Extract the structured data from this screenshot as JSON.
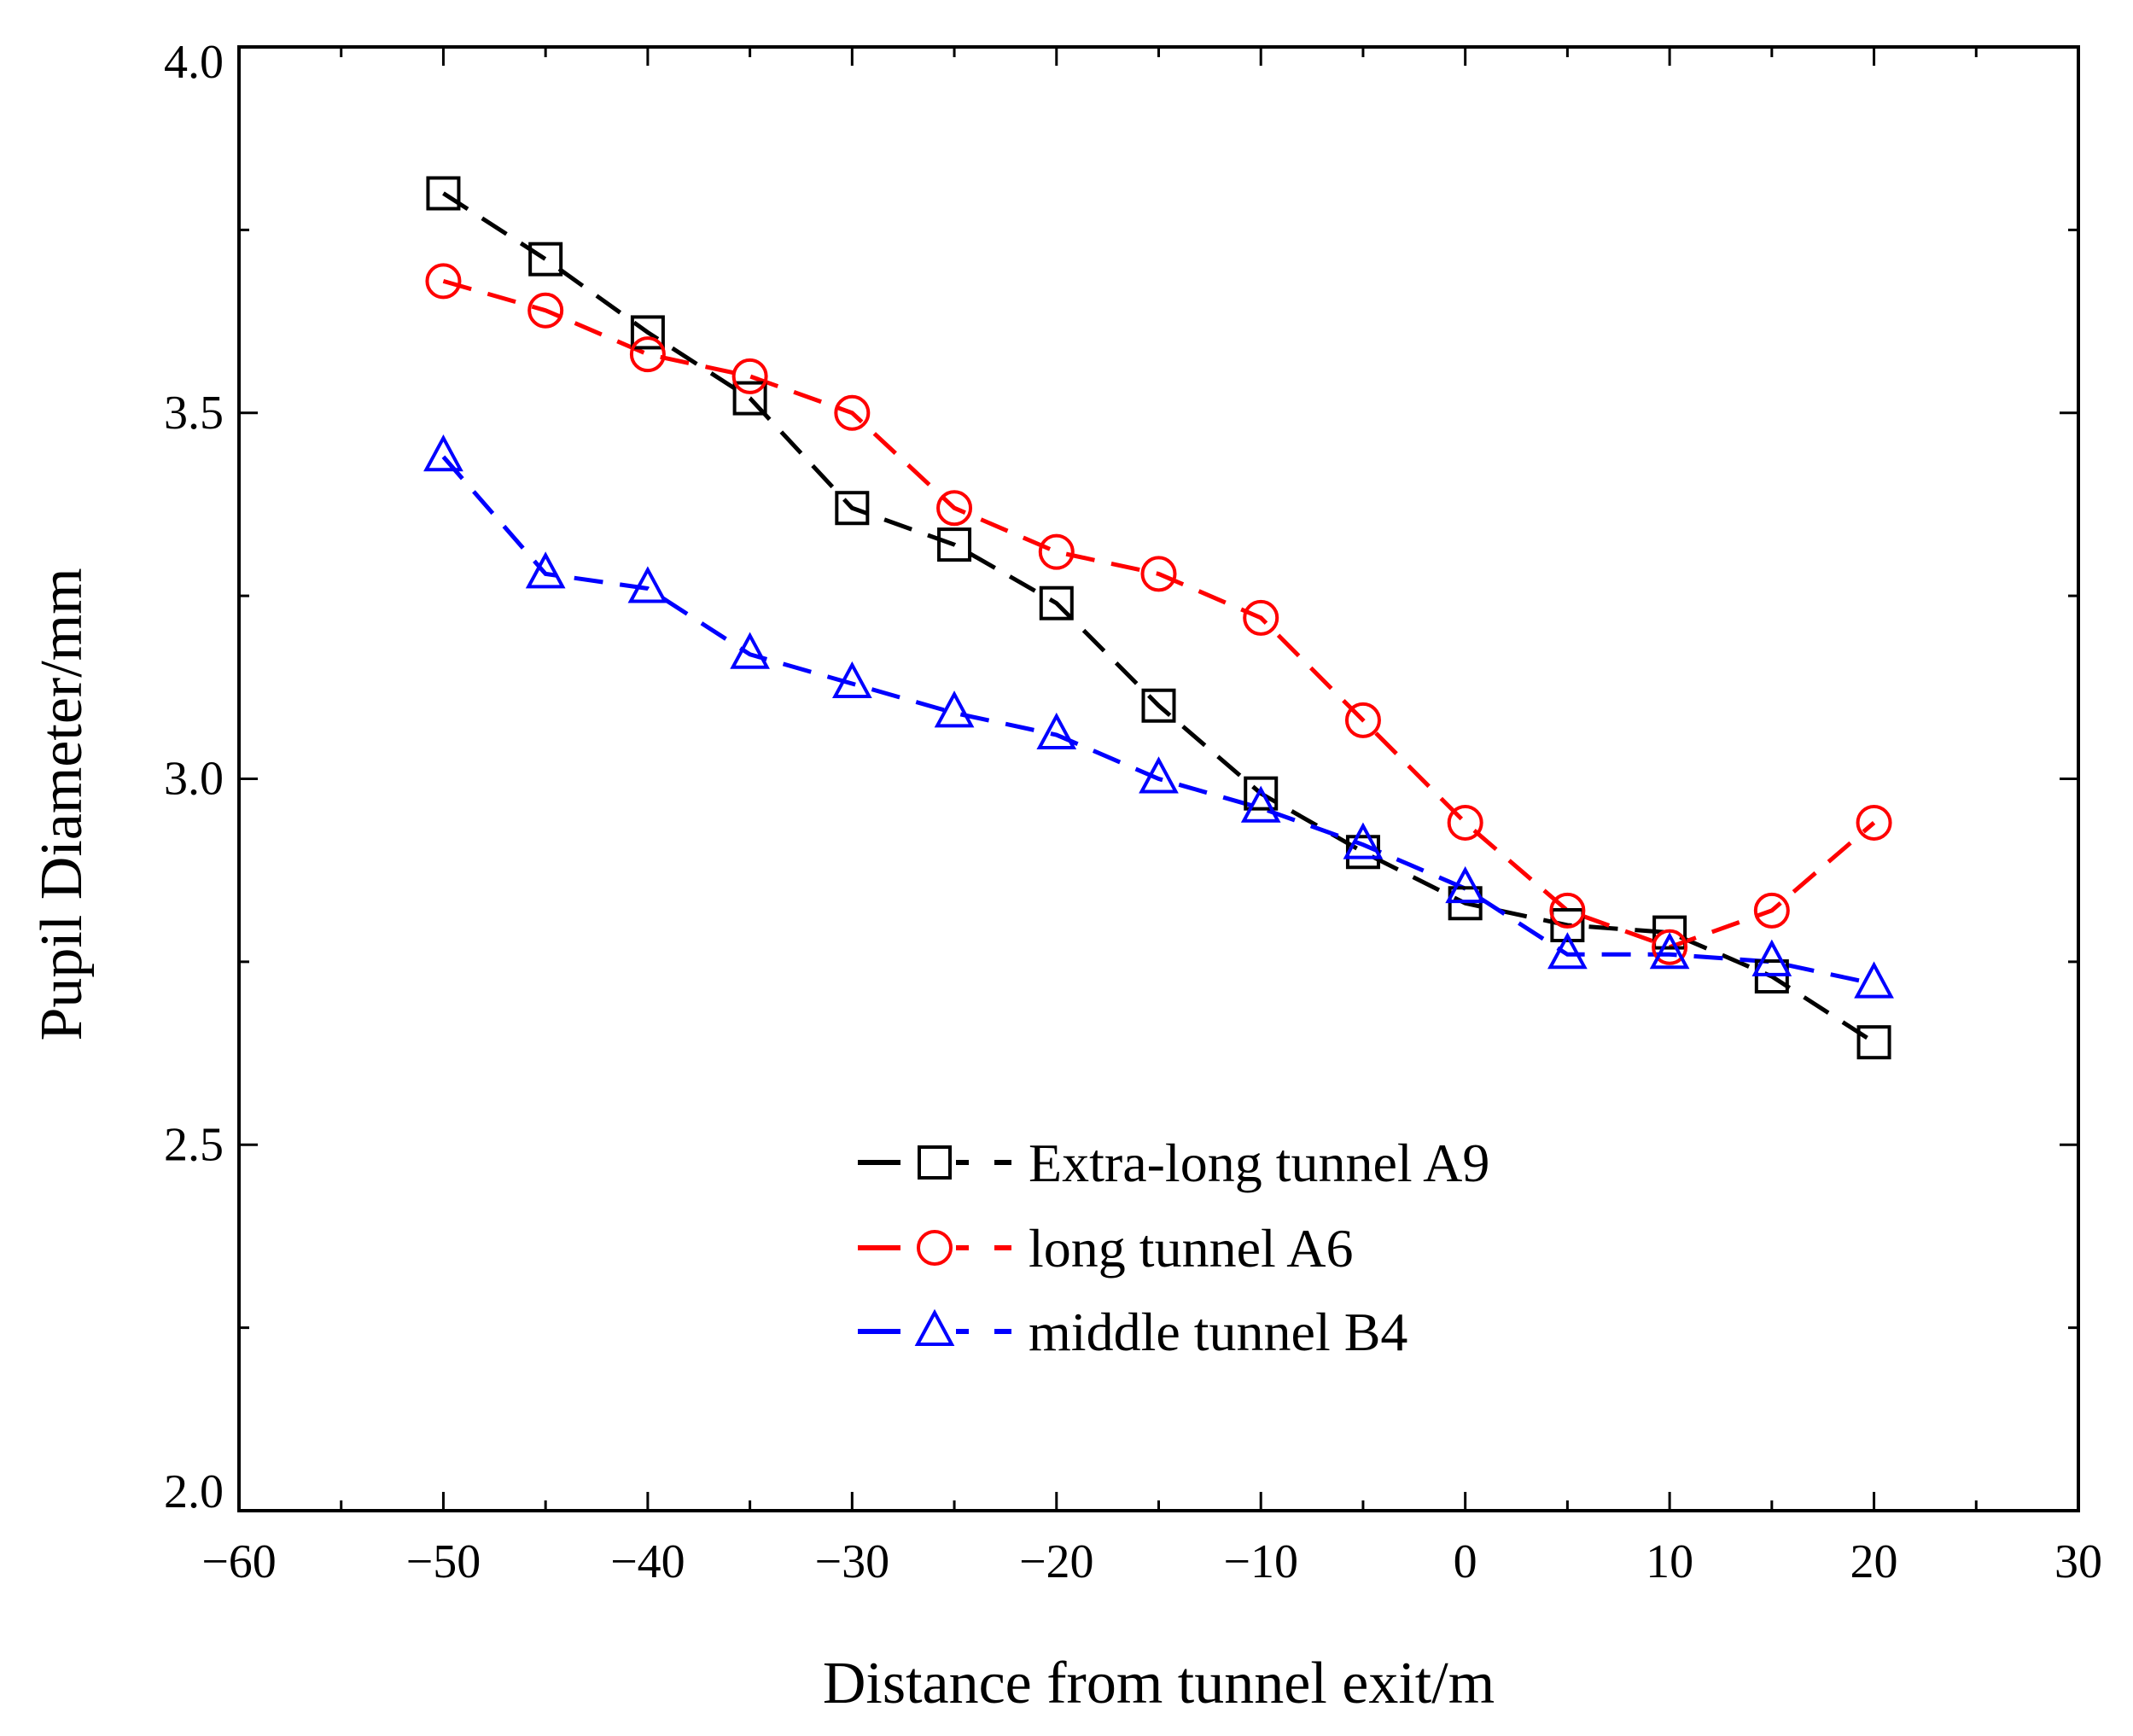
{
  "chart_data": {
    "type": "line",
    "title": "",
    "xlabel": "Distance from tunnel exit/m",
    "ylabel": "Pupil Diameter/mm",
    "xlim": [
      -60,
      30
    ],
    "ylim": [
      2.0,
      4.0
    ],
    "xticks": [
      -60,
      -50,
      -40,
      -30,
      -20,
      -10,
      0,
      10,
      20,
      30
    ],
    "xtick_labels": [
      "−60",
      "−50",
      "−40",
      "−30",
      "−20",
      "−10",
      "0",
      "10",
      "20",
      "30"
    ],
    "yticks": [
      2.0,
      2.5,
      3.0,
      3.5,
      4.0
    ],
    "ytick_labels": [
      "2.0",
      "2.5",
      "3.0",
      "3.5",
      "4.0"
    ],
    "grid": false,
    "legend_position": "bottom-center",
    "x": [
      -50,
      -45,
      -40,
      -35,
      -30,
      -25,
      -20,
      -15,
      -10,
      -5,
      0,
      5,
      10,
      15,
      20
    ],
    "series": [
      {
        "name": "Extra-long tunnel A9",
        "color": "#000000",
        "marker": "square",
        "values": [
          3.8,
          3.71,
          3.61,
          3.52,
          3.37,
          3.32,
          3.24,
          3.1,
          2.98,
          2.9,
          2.83,
          2.8,
          2.79,
          2.73,
          2.64
        ]
      },
      {
        "name": "long tunnel A6",
        "color": "#ff0000",
        "marker": "circle",
        "values": [
          3.68,
          3.64,
          3.58,
          3.55,
          3.5,
          3.37,
          3.31,
          3.28,
          3.22,
          3.08,
          2.94,
          2.82,
          2.77,
          2.82,
          2.94
        ]
      },
      {
        "name": "middle tunnel B4",
        "color": "#0000ff",
        "marker": "triangle",
        "values": [
          3.44,
          3.28,
          3.26,
          3.17,
          3.13,
          3.09,
          3.06,
          3.0,
          2.96,
          2.91,
          2.85,
          2.76,
          2.76,
          2.75,
          2.72
        ]
      }
    ]
  }
}
